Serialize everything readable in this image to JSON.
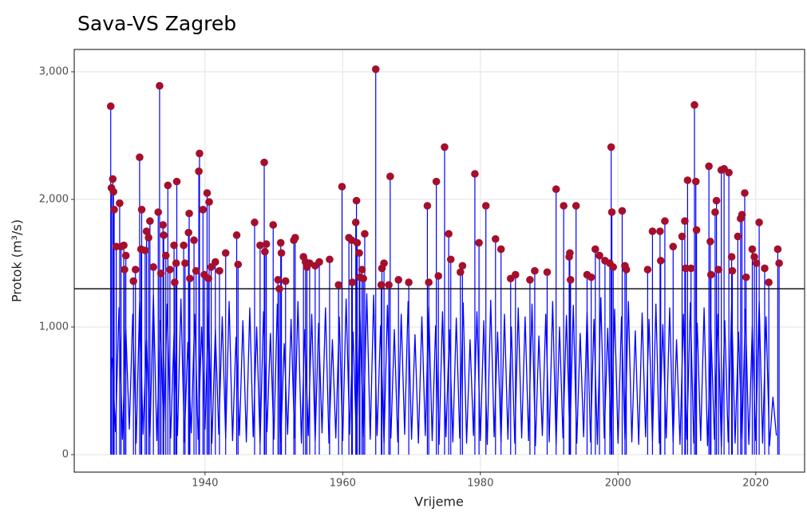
{
  "chart_data": {
    "type": "line",
    "title": "Sava-VS Zagreb",
    "x_label": "Vrijeme",
    "y_label": "Protok (m³/s)",
    "xlim": [
      1921,
      2027.1
    ],
    "ylim": [
      -137,
      3175
    ],
    "xticks": [
      1940,
      1960,
      1980,
      2000,
      2020
    ],
    "yticks": [
      {
        "value": 0,
        "label": "0"
      },
      {
        "value": 1000,
        "label": "1,000"
      },
      {
        "value": 2000,
        "label": "2,000"
      },
      {
        "value": 3000,
        "label": "3,000"
      }
    ],
    "grid": true,
    "threshold": 1300,
    "threshold_color": "#000000",
    "series": [
      {
        "type": "line",
        "color": "#0000ff",
        "x": [
          1926.5,
          1927,
          1927.5,
          1928,
          1928.5,
          1929,
          1929.5,
          1930,
          1930.5,
          1931,
          1931.5,
          1932,
          1932.5,
          1933,
          1933.5,
          1934,
          1934.5,
          1935,
          1935.5,
          1936,
          1936.5,
          1937,
          1937.5,
          1938,
          1938.5,
          1939,
          1939.5,
          1940,
          1940.5,
          1941,
          1941.5,
          1942,
          1942.5,
          1943,
          1943.5,
          1944,
          1944.5,
          1945,
          1945.5,
          1946,
          1946.5,
          1947,
          1947.5,
          1948,
          1948.5,
          1949,
          1949.5,
          1950,
          1950.5,
          1951,
          1951.5,
          1952,
          1952.5,
          1953,
          1953.5,
          1954,
          1954.5,
          1955,
          1955.5,
          1956,
          1956.5,
          1957,
          1957.5,
          1958,
          1958.5,
          1959,
          1959.5,
          1960,
          1960.5,
          1961,
          1961.5,
          1962,
          1962.5,
          1963,
          1963.5,
          1964,
          1964.5,
          1965,
          1965.5,
          1966,
          1966.5,
          1967,
          1967.5,
          1968,
          1968.5,
          1969,
          1969.5,
          1970,
          1970.5,
          1971,
          1971.5,
          1972,
          1972.5,
          1973,
          1973.5,
          1974,
          1974.5,
          1975,
          1975.5,
          1976,
          1976.5,
          1977,
          1977.5,
          1978,
          1978.5,
          1979,
          1979.5,
          1980,
          1980.5,
          1981,
          1981.5,
          1982,
          1982.5,
          1983,
          1983.5,
          1984,
          1984.5,
          1985,
          1985.5,
          1986,
          1986.5,
          1987,
          1987.5,
          1988,
          1988.5,
          1989,
          1989.5,
          1990,
          1990.5,
          1991,
          1991.5,
          1992,
          1992.5,
          1993,
          1993.5,
          1994,
          1994.5,
          1995,
          1995.5,
          1996,
          1996.5,
          1997,
          1997.5,
          1998,
          1998.5,
          1999,
          1999.5,
          2000,
          2000.5,
          2001,
          2001.5,
          2002,
          2002.5,
          2003,
          2003.5,
          2004,
          2004.5,
          2005,
          2005.5,
          2006,
          2006.5,
          2007,
          2007.5,
          2008,
          2008.5,
          2009,
          2009.5,
          2010,
          2010.5,
          2011,
          2011.5,
          2012,
          2012.5,
          2013,
          2013.5,
          2014,
          2014.5,
          2015,
          2015.5,
          2016,
          2016.5,
          2017,
          2017.5,
          2018,
          2018.5,
          2019,
          2019.5,
          2020,
          2020.5,
          2021,
          2021.5,
          2022,
          2022.5,
          2023
        ],
        "values": [
          760,
          180,
          1150,
          120,
          980,
          200,
          1100,
          90,
          1200,
          160,
          900,
          140,
          1250,
          110,
          1050,
          180,
          1180,
          130,
          950,
          150,
          1220,
          100,
          880,
          170,
          1100,
          120,
          1000,
          200,
          1150,
          90,
          980,
          160,
          1080,
          130,
          1200,
          110,
          920,
          150,
          1050,
          100,
          1150,
          140,
          1000,
          90,
          1120,
          180,
          950,
          120,
          1180,
          100,
          870,
          160,
          1060,
          130,
          1200,
          90,
          980,
          150,
          1100,
          110,
          1030,
          170,
          1150,
          90,
          900,
          130,
          1080,
          110,
          1220,
          160,
          960,
          100,
          1130,
          140,
          1260,
          120,
          1250,
          150,
          1010,
          90,
          1170,
          130,
          980,
          100,
          1100,
          160,
          1200,
          120,
          940,
          90,
          1080,
          150,
          1160,
          110,
          1010,
          80,
          1120,
          140,
          980,
          100,
          1070,
          130,
          1190,
          90,
          900,
          150,
          1120,
          110,
          1050,
          80,
          1210,
          140,
          960,
          100,
          1100,
          120,
          1000,
          90,
          1150,
          130,
          1080,
          110,
          1180,
          70,
          930,
          150,
          1100,
          100,
          1200,
          80,
          1000,
          130,
          1090,
          110,
          1170,
          90,
          950,
          140,
          1120,
          100,
          1060,
          80,
          1230,
          130,
          990,
          110,
          1140,
          90,
          1080,
          120,
          1200,
          100,
          970,
          80,
          1110,
          140,
          1060,
          110,
          1180,
          90,
          1020,
          130,
          1150,
          100,
          900,
          80,
          1100,
          120,
          1190,
          90,
          1030,
          110,
          1150,
          70,
          980,
          120,
          1100,
          60,
          1050,
          100,
          1180,
          90,
          960,
          120,
          1140,
          80,
          1000,
          110,
          1200,
          90,
          1080,
          70,
          450,
          150
        ]
      },
      {
        "type": "scatter",
        "color": "#a50f2c",
        "stem_color": "#0000ff",
        "x": [
          1926.3,
          1926.4,
          1926.6,
          1926.7,
          1926.8,
          1927.1,
          1927.6,
          1927.8,
          1928.2,
          1928.3,
          1928.5,
          1929.6,
          1929.9,
          1930.5,
          1930.7,
          1930.8,
          1931.3,
          1931.5,
          1931.8,
          1932.0,
          1932.5,
          1933.2,
          1933.4,
          1933.6,
          1933.9,
          1934.0,
          1934.3,
          1934.6,
          1934.9,
          1935.5,
          1935.6,
          1935.8,
          1935.9,
          1936.9,
          1937.1,
          1937.6,
          1937.7,
          1937.8,
          1938.4,
          1938.7,
          1939.1,
          1939.2,
          1939.7,
          1939.9,
          1940.3,
          1940.5,
          1940.6,
          1940.9,
          1941.5,
          1942.1,
          1943.0,
          1944.6,
          1944.8,
          1947.2,
          1948.0,
          1948.6,
          1948.7,
          1948.9,
          1949.9,
          1950.6,
          1950.8,
          1951.0,
          1951.1,
          1951.7,
          1952.9,
          1953.1,
          1954.3,
          1954.6,
          1954.8,
          1955.2,
          1956.0,
          1956.6,
          1958.1,
          1959.4,
          1959.9,
          1960.9,
          1961.3,
          1961.4,
          1961.9,
          1962.0,
          1962.1,
          1962.4,
          1962.5,
          1962.8,
          1963.0,
          1963.2,
          1964.8,
          1965.6,
          1965.7,
          1966.0,
          1966.7,
          1966.9,
          1968.1,
          1969.6,
          1972.3,
          1972.5,
          1973.6,
          1973.9,
          1974.8,
          1975.4,
          1975.7,
          1977.1,
          1977.4,
          1979.2,
          1979.8,
          1980.8,
          1982.2,
          1983.0,
          1984.4,
          1985.1,
          1987.2,
          1987.9,
          1989.7,
          1991.0,
          1992.1,
          1992.9,
          1993.0,
          1993.1,
          1993.9,
          1995.5,
          1996.1,
          1996.7,
          1997.3,
          1998.1,
          1998.8,
          1999.0,
          1999.1,
          1999.3,
          2000.6,
          2001.0,
          2001.2,
          2004.3,
          2005.0,
          2006.1,
          2006.2,
          2006.8,
          2008.0,
          2009.3,
          2009.7,
          2009.8,
          2010.1,
          2010.6,
          2011.1,
          2011.3,
          2011.4,
          2013.2,
          2013.4,
          2013.5,
          2014.1,
          2014.3,
          2014.6,
          2015.0,
          2015.4,
          2016.1,
          2016.5,
          2016.6,
          2017.4,
          2017.8,
          2018.0,
          2018.4,
          2018.6,
          2019.5,
          2019.8,
          2020.1,
          2020.5,
          2021.3,
          2021.9,
          2023.2,
          2023.4
        ],
        "values": [
          2730,
          2090,
          2160,
          2060,
          1920,
          1630,
          1970,
          1630,
          1640,
          1450,
          1560,
          1360,
          1450,
          2330,
          1610,
          1920,
          1600,
          1750,
          1700,
          1830,
          1470,
          1900,
          2890,
          1420,
          1800,
          1720,
          1560,
          2110,
          1450,
          1640,
          1350,
          1500,
          2140,
          1640,
          1500,
          1740,
          1890,
          1380,
          1680,
          1440,
          2220,
          2360,
          1920,
          1410,
          2050,
          1380,
          1980,
          1470,
          1510,
          1440,
          1580,
          1720,
          1490,
          1820,
          1640,
          2290,
          1590,
          1650,
          1800,
          1370,
          1300,
          1660,
          1580,
          1360,
          1680,
          1700,
          1550,
          1510,
          1470,
          1500,
          1480,
          1510,
          1530,
          1330,
          2100,
          1700,
          1680,
          1350,
          1820,
          1990,
          1660,
          1580,
          1390,
          1450,
          1380,
          1730,
          3020,
          1330,
          1460,
          1500,
          1330,
          2180,
          1370,
          1350,
          1950,
          1350,
          2140,
          1400,
          2410,
          1730,
          1530,
          1430,
          1480,
          2200,
          1660,
          1950,
          1690,
          1610,
          1380,
          1410,
          1370,
          1440,
          1430,
          2080,
          1950,
          1550,
          1580,
          1370,
          1950,
          1410,
          1390,
          1610,
          1560,
          1520,
          1500,
          2410,
          1900,
          1470,
          1910,
          1480,
          1450,
          1450,
          1750,
          1750,
          1520,
          1830,
          1630,
          1710,
          1830,
          1460,
          2150,
          1460,
          2740,
          2140,
          1760,
          2260,
          1670,
          1410,
          1900,
          1990,
          1450,
          2230,
          2240,
          2210,
          1550,
          1440,
          1710,
          1850,
          1880,
          2050,
          1390,
          1610,
          1550,
          1500,
          1820,
          1460,
          1350,
          1610,
          1500
        ]
      }
    ]
  }
}
